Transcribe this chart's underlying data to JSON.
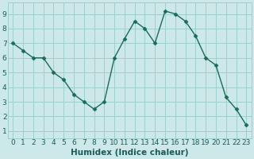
{
  "x": [
    0,
    1,
    2,
    3,
    4,
    5,
    6,
    7,
    8,
    9,
    10,
    11,
    12,
    13,
    14,
    15,
    16,
    17,
    18,
    19,
    20,
    21,
    22,
    23
  ],
  "y": [
    7.0,
    6.5,
    6.0,
    6.0,
    5.0,
    4.5,
    3.5,
    3.0,
    2.5,
    3.0,
    6.0,
    7.3,
    8.5,
    8.0,
    7.0,
    9.2,
    9.0,
    8.5,
    7.5,
    6.0,
    5.5,
    3.3,
    2.5,
    1.4
  ],
  "line_color": "#1a6b5a",
  "marker": "D",
  "marker_size": 2.5,
  "bg_color": "#cde8e8",
  "grid_color": "#9ecece",
  "xlabel": "Humidex (Indice chaleur)",
  "xlabel_fontsize": 7.5,
  "xlim": [
    -0.5,
    23.5
  ],
  "ylim": [
    0.5,
    9.8
  ],
  "yticks": [
    1,
    2,
    3,
    4,
    5,
    6,
    7,
    8,
    9
  ],
  "xtick_labels": [
    "0",
    "1",
    "2",
    "3",
    "4",
    "5",
    "6",
    "7",
    "8",
    "9",
    "10",
    "11",
    "12",
    "13",
    "14",
    "15",
    "16",
    "17",
    "18",
    "19",
    "20",
    "21",
    "22",
    "23"
  ],
  "tick_fontsize": 6.5
}
